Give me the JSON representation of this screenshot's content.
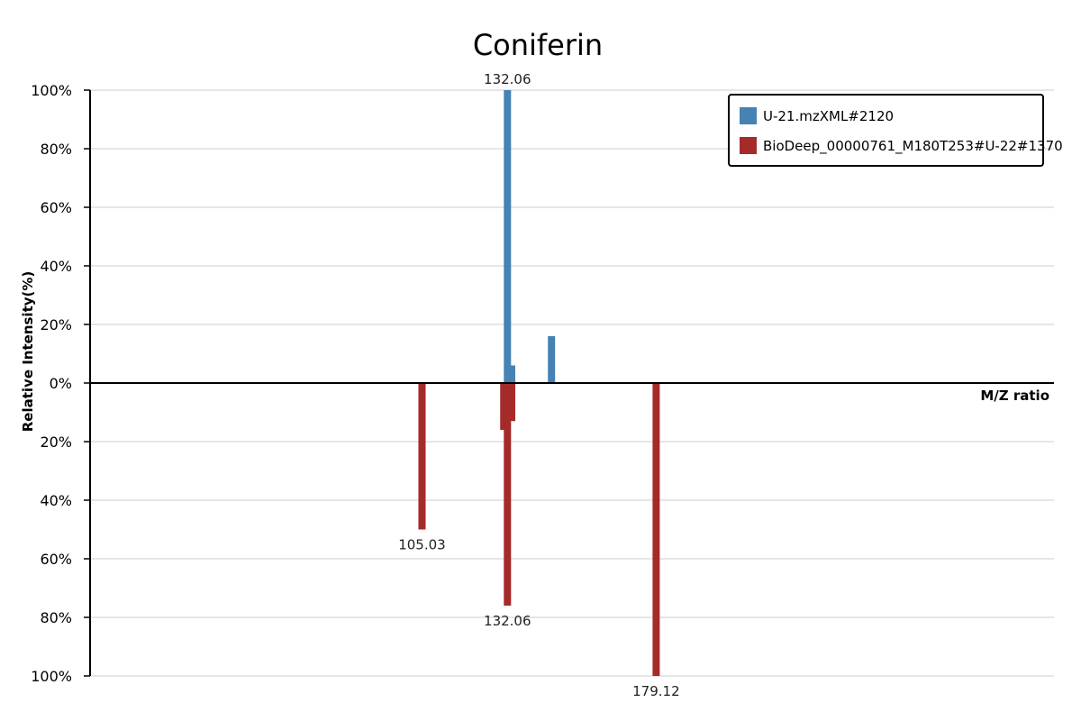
{
  "chart_data": {
    "type": "bar",
    "title": "Coniferin",
    "xlabel": "M/Z ratio",
    "ylabel": "Relative Intensity(%)",
    "ylim": [
      -100,
      100
    ],
    "xlim": [
      0,
      305
    ],
    "y_ticks": [
      {
        "value": 100,
        "label": "100%"
      },
      {
        "value": 80,
        "label": "80%"
      },
      {
        "value": 60,
        "label": "60%"
      },
      {
        "value": 40,
        "label": "40%"
      },
      {
        "value": 20,
        "label": "20%"
      },
      {
        "value": 0,
        "label": "0%"
      },
      {
        "value": -20,
        "label": "20%"
      },
      {
        "value": -40,
        "label": "40%"
      },
      {
        "value": -60,
        "label": "60%"
      },
      {
        "value": -80,
        "label": "80%"
      },
      {
        "value": -100,
        "label": "100%"
      }
    ],
    "grid": true,
    "legend_position": "top-right",
    "series": [
      {
        "name": "U-21.mzXML#2120",
        "color": "#4682b4",
        "direction": "up",
        "peaks": [
          {
            "mz": 132.06,
            "intensity": 100,
            "label": "132.06"
          },
          {
            "mz": 133.4,
            "intensity": 6,
            "label": ""
          },
          {
            "mz": 146.0,
            "intensity": 16,
            "label": ""
          }
        ]
      },
      {
        "name": "BioDeep_00000761_M180T253#U-22#1370",
        "color": "#a52a2a",
        "direction": "down",
        "peaks": [
          {
            "mz": 105.03,
            "intensity": 50,
            "label": "105.03"
          },
          {
            "mz": 130.9,
            "intensity": 16,
            "label": ""
          },
          {
            "mz": 132.06,
            "intensity": 76,
            "label": "132.06"
          },
          {
            "mz": 133.4,
            "intensity": 13,
            "label": ""
          },
          {
            "mz": 179.12,
            "intensity": 100,
            "label": "179.12"
          }
        ]
      }
    ]
  }
}
